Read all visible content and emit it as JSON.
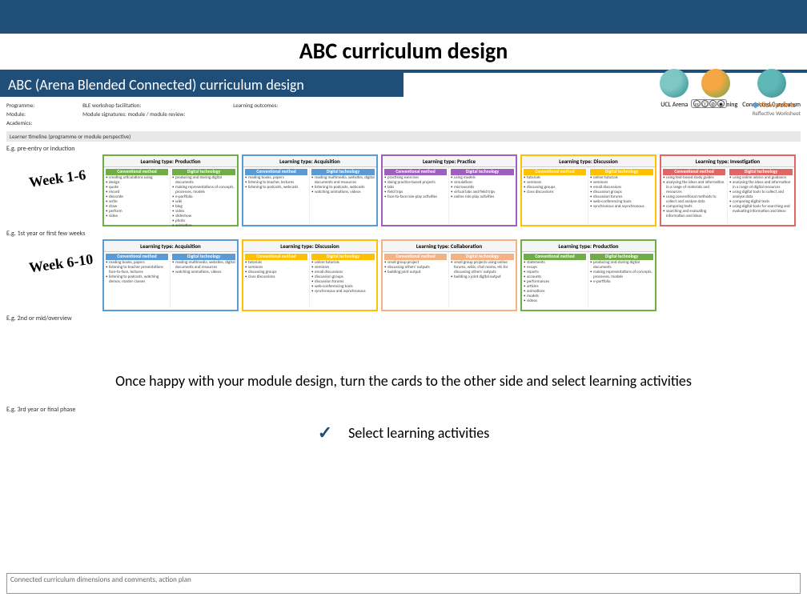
{
  "title": "ABC curriculum design",
  "subtitle": "ABC (Arena Blended Connected) curriculum design",
  "logos": [
    {
      "name": "ucl-arena",
      "label": "UCL Arena",
      "color1": "#7fc6c6",
      "color2": "#2a8a8a"
    },
    {
      "name": "blended",
      "label": "Blended learning",
      "color1": "#f4a742",
      "color2": "#5da84f"
    },
    {
      "name": "connected",
      "label": "Connected Curriculum",
      "color1": "#5fb8b8",
      "color2": "#3a8a8a"
    }
  ],
  "viewpoints_label": "Viewpoints",
  "viewpoints_sub": "Reflective Worksheet",
  "meta_labels": {
    "programme": "Programme:",
    "module": "Module:",
    "academics": "Academics:",
    "ble": "BLE workshop facilitation:",
    "signature": "Module signatures: module / module review:",
    "outcomes": "Learning outcomes:",
    "timeline": "Learner timeline (programme or module perspective)",
    "row1": "E.g. pre-entry or induction",
    "row2": "E.g. 1st year or first few weeks",
    "row3": "E.g. 2nd or mid/overview",
    "row4": "E.g. 3rd year or final phase"
  },
  "week1": "Week 1-6",
  "week2": "Week 6-10",
  "colhead_conv": "Conventional method",
  "colhead_dig": "Digital technology",
  "card_types": {
    "production": {
      "label": "Learning type: Production",
      "border": "#70ad47",
      "head": "#70ad47"
    },
    "acquisition": {
      "label": "Learning type: Acquisition",
      "border": "#5b9bd5",
      "head": "#5b9bd5"
    },
    "practice": {
      "label": "Learning type: Practice",
      "border": "#9e5fbf",
      "head": "#9e5fbf"
    },
    "discussion": {
      "label": "Learning type: Discussion",
      "border": "#ffc000",
      "head": "#ffc000"
    },
    "investigation": {
      "label": "Learning type: Investigation",
      "border": "#e06666",
      "head": "#e06666"
    },
    "collaboration": {
      "label": "Learning type: Collaboration",
      "border": "#f4b183",
      "head": "#f4b183"
    }
  },
  "row1_cards": [
    {
      "type": "production",
      "conv": [
        "creating articulations using",
        "design",
        "quote",
        "record",
        "decorate",
        "write",
        "draw",
        "perform",
        "video"
      ],
      "dig": [
        "producing and storing digital documents",
        "making representations of concepts, processes, models",
        "e-portfolio",
        "wiki",
        "blog",
        "video",
        "slideshow",
        "photo",
        "animation"
      ]
    },
    {
      "type": "acquisition",
      "conv": [
        "reading books, papers",
        "listening to teacher, lectures",
        "listening to podcasts, webcasts"
      ],
      "dig": [
        "reading multimedia, websites, digital documents and resources",
        "listening to podcasts, webcasts",
        "watching animations, videos"
      ]
    },
    {
      "type": "practice",
      "conv": [
        "practising exercises",
        "doing practice-based projects",
        "labs",
        "field trips",
        "face-to-face role-play activities"
      ],
      "dig": [
        "using models",
        "simulations",
        "microworlds",
        "virtual labs and field trips",
        "online role play activities"
      ]
    },
    {
      "type": "discussion",
      "conv": [
        "tutorials",
        "seminars",
        "discussing groups",
        "class discussions"
      ],
      "dig": [
        "online tutorials",
        "seminars",
        "email discussions",
        "discussion groups",
        "discussion forums",
        "web-conferencing tools",
        "synchronous and asynchronous"
      ]
    },
    {
      "type": "investigation",
      "conv": [
        "using text-based study guides",
        "analysing the ideas and information in a range of materials and resources",
        "using conventional methods to collect and analyse data",
        "comparing texts",
        "searching and evaluating information and ideas"
      ],
      "dig": [
        "using online advice and guidance",
        "analysing the ideas and information in a range of digital resources",
        "using digital tools to collect and analyse data",
        "comparing digital texts",
        "using digital tools for searching and evaluating information and ideas"
      ]
    }
  ],
  "row2_cards": [
    {
      "type": "acquisition",
      "conv": [
        "reading books, papers",
        "listening to teacher presentations face-to-face, lectures",
        "listening to podcasts, watching demos, master classes"
      ],
      "dig": [
        "reading multimedia, websites, digital documents and resources",
        "watching animations, videos"
      ]
    },
    {
      "type": "discussion",
      "conv": [
        "tutorials",
        "seminars",
        "discussing groups",
        "class discussions"
      ],
      "dig": [
        "online tutorials",
        "seminars",
        "email discussions",
        "discussion groups",
        "discussion forums",
        "web-conferencing tools",
        "synchronous and asynchronous"
      ]
    },
    {
      "type": "collaboration",
      "conv": [
        "small group project",
        "discussing others' outputs",
        "building joint output"
      ],
      "dig": [
        "small group projects using online forums, wikis, chat rooms, etc for discussing others' outputs",
        "building a joint digital output"
      ]
    },
    {
      "type": "production",
      "conv": [
        "statements",
        "essays",
        "reports",
        "accounts",
        "performances",
        "articles",
        "animations",
        "models",
        "videos",
        "slideshows",
        "photos",
        "portfolios"
      ],
      "dig": [
        "producing and storing digital documents",
        "making representations of concepts, processes, models",
        "e-portfolio"
      ]
    }
  ],
  "instruction": "Once happy with your module design, turn the cards to the other side and select learning activities",
  "select_label": "Select learning activities",
  "footer": "Connected curriculum dimensions and comments, action plan"
}
